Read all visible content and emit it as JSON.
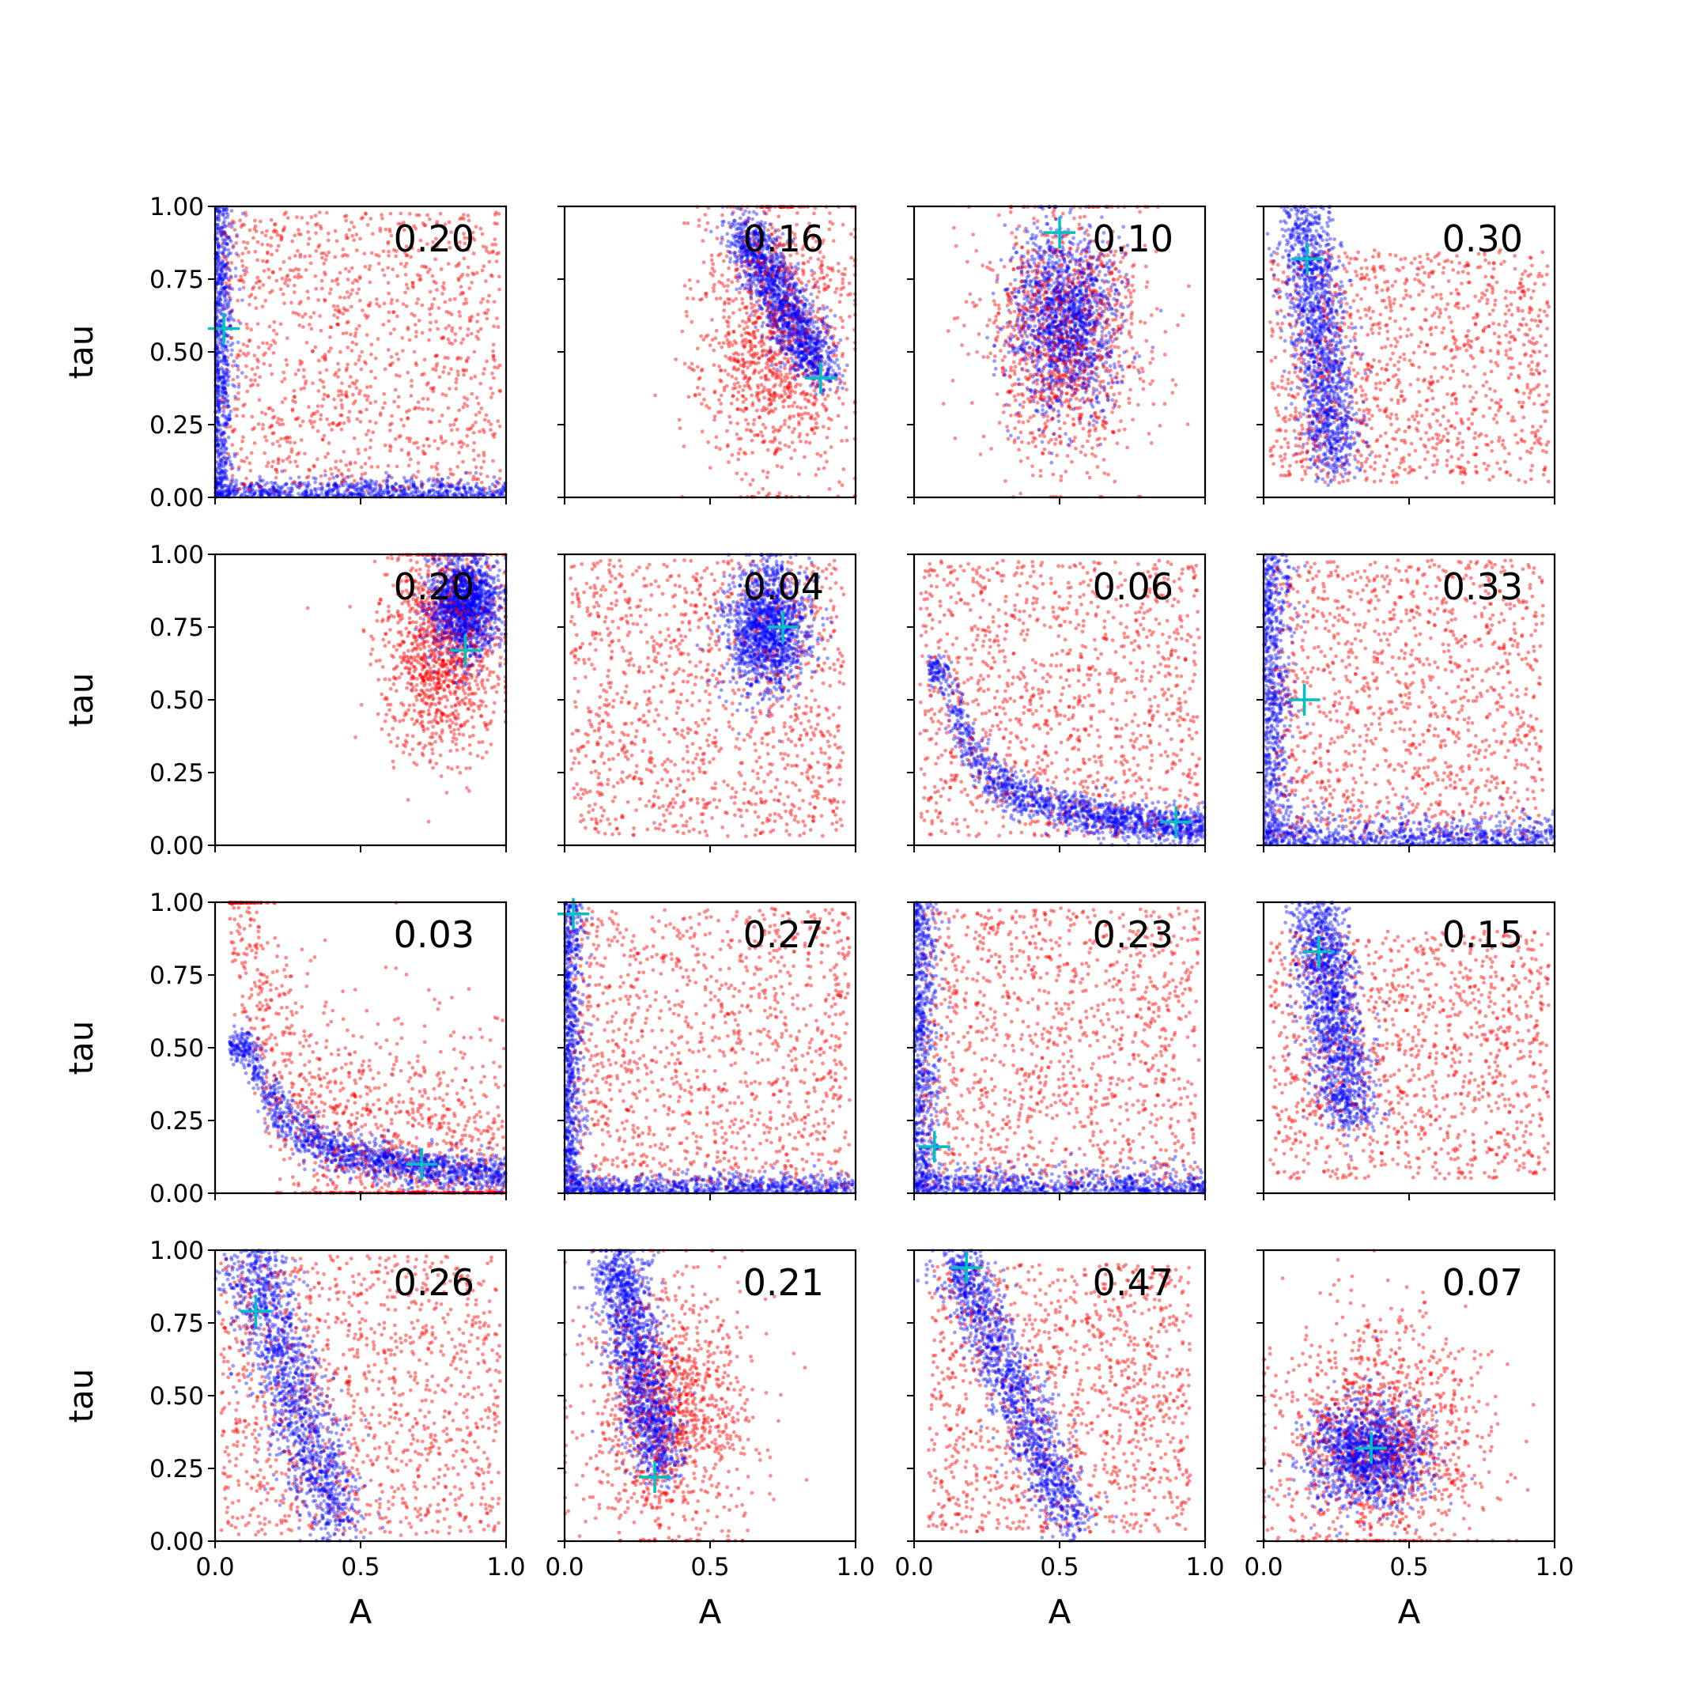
{
  "chart_data": {
    "type": "scatter",
    "grid": false,
    "rows": 4,
    "cols": 4,
    "xlabel": "A",
    "ylabel": "tau",
    "xlim": [
      0,
      1
    ],
    "ylim": [
      0,
      1
    ],
    "xticks": [
      "0.0",
      "0.5",
      "1.0"
    ],
    "yticks": [
      "0.00",
      "0.25",
      "0.50",
      "0.75",
      "1.00"
    ],
    "colors": {
      "series_red": "#ff0000",
      "series_blue": "#0000ff",
      "marker": "#00bfbf"
    },
    "panels": [
      {
        "label": "0.20",
        "marker": [
          0.03,
          0.58
        ]
      },
      {
        "label": "0.16",
        "marker": [
          0.88,
          0.41
        ]
      },
      {
        "label": "0.10",
        "marker": [
          0.5,
          0.91
        ]
      },
      {
        "label": "0.30",
        "marker": [
          0.15,
          0.82
        ]
      },
      {
        "label": "0.20",
        "marker": [
          0.86,
          0.67
        ]
      },
      {
        "label": "0.04",
        "marker": [
          0.75,
          0.75
        ]
      },
      {
        "label": "0.06",
        "marker": [
          0.9,
          0.08
        ]
      },
      {
        "label": "0.33",
        "marker": [
          0.14,
          0.5
        ]
      },
      {
        "label": "0.03",
        "marker": [
          0.71,
          0.1
        ]
      },
      {
        "label": "0.27",
        "marker": [
          0.03,
          0.96
        ]
      },
      {
        "label": "0.23",
        "marker": [
          0.07,
          0.16
        ]
      },
      {
        "label": "0.15",
        "marker": [
          0.19,
          0.83
        ]
      },
      {
        "label": "0.26",
        "marker": [
          0.14,
          0.79
        ]
      },
      {
        "label": "0.21",
        "marker": [
          0.31,
          0.22
        ]
      },
      {
        "label": "0.47",
        "marker": [
          0.18,
          0.94
        ]
      },
      {
        "label": "0.07",
        "marker": [
          0.37,
          0.32
        ]
      }
    ]
  }
}
